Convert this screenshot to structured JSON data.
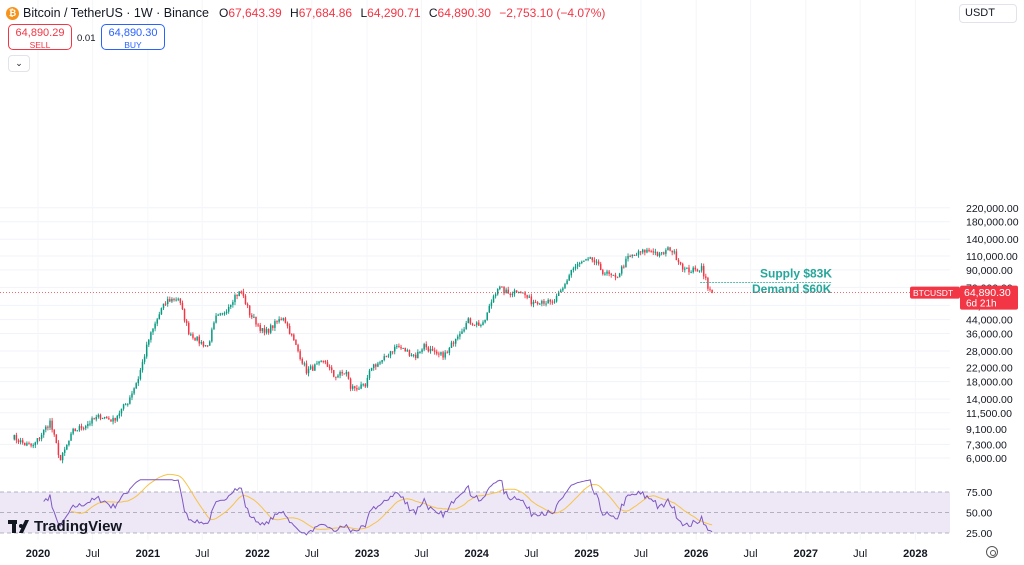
{
  "symbol": {
    "icon": "bitcoin-icon",
    "title": "Bitcoin / TetherUS · 1W · Binance",
    "ohlc": [
      {
        "k": "O",
        "v": "67,643.39"
      },
      {
        "k": "H",
        "v": "67,684.86"
      },
      {
        "k": "L",
        "v": "64,290.71"
      },
      {
        "k": "C",
        "v": "64,890.30"
      },
      {
        "k": "",
        "v": "−2,753.10 (−4.07%)"
      }
    ]
  },
  "trade": {
    "sell_price": "64,890.29",
    "sell_label": "SELL",
    "buy_price": "64,890.30",
    "buy_label": "BUY",
    "spread": "0.01"
  },
  "currency": "USDT",
  "colors": {
    "up": "#089981",
    "down": "#f23645",
    "rsi": "#7e57c2",
    "rsi_ma": "#f7c34a",
    "rsi_band": "#ede7f6",
    "annotation": "#26a69a",
    "logo": "#f7931a"
  },
  "price_label": {
    "symbol": "BTCUSDT",
    "price": "64,890.30",
    "countdown": "6d 21h"
  },
  "annotations": [
    {
      "text": "Supply $83K"
    },
    {
      "text": "Demand $60K"
    }
  ],
  "y_axis": [
    "220,000.00",
    "180,000.00",
    "140,000.00",
    "110,000.00",
    "90,000.00",
    "70,000.00",
    "54,000.00",
    "44,000.00",
    "36,000.00",
    "28,000.00",
    "22,000.00",
    "18,000.00",
    "14,000.00",
    "11,500.00",
    "9,100.00",
    "7,300.00",
    "6,000.00"
  ],
  "rsi_axis": [
    "75.00",
    "50.00",
    "25.00"
  ],
  "x_axis": [
    "2020",
    "Jul",
    "2021",
    "Jul",
    "2022",
    "Jul",
    "2023",
    "Jul",
    "2024",
    "Jul",
    "2025",
    "Jul",
    "2026",
    "Jul",
    "2027",
    "Jul",
    "2028"
  ],
  "branding": "TradingView",
  "chart_data": {
    "type": "candlestick",
    "scale": "log",
    "interval": "1W",
    "anchors": [
      [
        "2019-10-07",
        8200
      ],
      [
        "2019-11-18",
        7300
      ],
      [
        "2019-12-16",
        7100
      ],
      [
        "2020-02-10",
        10100
      ],
      [
        "2020-03-16",
        5800
      ],
      [
        "2020-04-27",
        8800
      ],
      [
        "2020-06-01",
        9500
      ],
      [
        "2020-07-27",
        11000
      ],
      [
        "2020-09-07",
        10300
      ],
      [
        "2020-10-26",
        13500
      ],
      [
        "2020-11-30",
        19000
      ],
      [
        "2021-01-04",
        33000
      ],
      [
        "2021-02-15",
        51000
      ],
      [
        "2021-03-08",
        58000
      ],
      [
        "2021-04-12",
        60000
      ],
      [
        "2021-05-17",
        37000
      ],
      [
        "2021-06-21",
        32000
      ],
      [
        "2021-07-19",
        30000
      ],
      [
        "2021-08-16",
        45000
      ],
      [
        "2021-09-06",
        47000
      ],
      [
        "2021-10-18",
        62000
      ],
      [
        "2021-11-08",
        66000
      ],
      [
        "2021-12-06",
        48000
      ],
      [
        "2022-01-24",
        36000
      ],
      [
        "2022-03-28",
        46000
      ],
      [
        "2022-05-09",
        30000
      ],
      [
        "2022-06-13",
        21000
      ],
      [
        "2022-07-25",
        23000
      ],
      [
        "2022-08-15",
        24000
      ],
      [
        "2022-09-12",
        19500
      ],
      [
        "2022-10-24",
        20500
      ],
      [
        "2022-11-07",
        16500
      ],
      [
        "2022-12-26",
        16600
      ],
      [
        "2023-01-16",
        22500
      ],
      [
        "2023-02-20",
        24000
      ],
      [
        "2023-03-20",
        28000
      ],
      [
        "2023-04-10",
        30000
      ],
      [
        "2023-06-12",
        26000
      ],
      [
        "2023-07-10",
        30500
      ],
      [
        "2023-08-21",
        26000
      ],
      [
        "2023-09-25",
        27000
      ],
      [
        "2023-10-23",
        34500
      ],
      [
        "2023-12-04",
        43000
      ],
      [
        "2024-01-22",
        40500
      ],
      [
        "2024-02-26",
        62000
      ],
      [
        "2024-03-11",
        70000
      ],
      [
        "2024-04-15",
        64000
      ],
      [
        "2024-05-20",
        68000
      ],
      [
        "2024-07-01",
        57000
      ],
      [
        "2024-08-05",
        58000
      ],
      [
        "2024-09-09",
        55000
      ],
      [
        "2024-10-14",
        68000
      ],
      [
        "2024-11-11",
        90000
      ],
      [
        "2024-12-16",
        100000
      ],
      [
        "2025-01-20",
        104000
      ],
      [
        "2025-02-24",
        88000
      ],
      [
        "2025-04-07",
        79000
      ],
      [
        "2025-05-19",
        107000
      ],
      [
        "2025-07-14",
        118000
      ],
      [
        "2025-08-11",
        119000
      ],
      [
        "2025-09-01",
        110000
      ],
      [
        "2025-10-06",
        123000
      ],
      [
        "2025-11-03",
        104000
      ],
      [
        "2025-11-24",
        90000
      ],
      [
        "2025-12-29",
        89000
      ],
      [
        "2026-01-19",
        94000
      ],
      [
        "2026-02-02",
        78000
      ],
      [
        "2026-02-09",
        68000
      ],
      [
        "2026-02-23",
        64890.3
      ]
    ],
    "last_candle": {
      "open": 67643.39,
      "high": 67684.86,
      "low": 64290.71,
      "close": 64890.3
    },
    "rsi": {
      "overbought": 75,
      "mid": 50,
      "oversold": 25
    },
    "levels": {
      "supply": 83000,
      "demand": 60000
    }
  }
}
